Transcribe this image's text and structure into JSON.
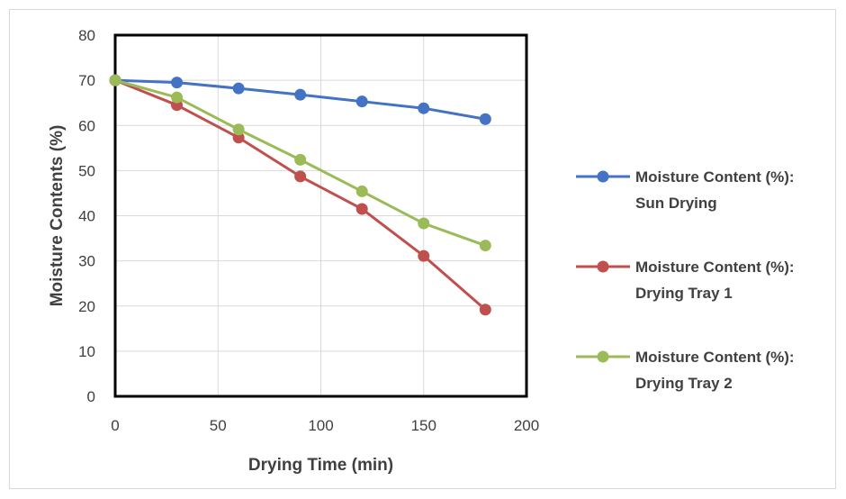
{
  "chart_data": {
    "type": "line",
    "xlabel": "Drying Time (min)",
    "ylabel": "Moisture Contents (%)",
    "xlim": [
      0,
      200
    ],
    "ylim": [
      0,
      80
    ],
    "x_ticks": [
      0,
      50,
      100,
      150,
      200
    ],
    "y_ticks": [
      0,
      10,
      20,
      30,
      40,
      50,
      60,
      70,
      80
    ],
    "grid": true,
    "legend_position": "right",
    "x": [
      0,
      30,
      60,
      90,
      120,
      150,
      180
    ],
    "series": [
      {
        "name": "Moisture Content (%): Sun Drying",
        "name_lines": [
          "Moisture Content (%):",
          "Sun Drying"
        ],
        "color": "#4472C4",
        "values": [
          70,
          69.5,
          68.2,
          66.8,
          65.3,
          63.8,
          61.4
        ]
      },
      {
        "name": "Moisture Content (%): Drying Tray 1",
        "name_lines": [
          "Moisture Content (%):",
          "Drying Tray 1"
        ],
        "color": "#C0504D",
        "values": [
          70,
          64.5,
          57.3,
          48.7,
          41.5,
          31.1,
          19.2
        ]
      },
      {
        "name": "Moisture Content (%): Drying Tray 2",
        "name_lines": [
          "Moisture Content (%):",
          "Drying Tray 2"
        ],
        "color": "#9BBB59",
        "values": [
          70,
          66.2,
          59.1,
          52.4,
          45.4,
          38.3,
          33.4
        ]
      }
    ]
  }
}
